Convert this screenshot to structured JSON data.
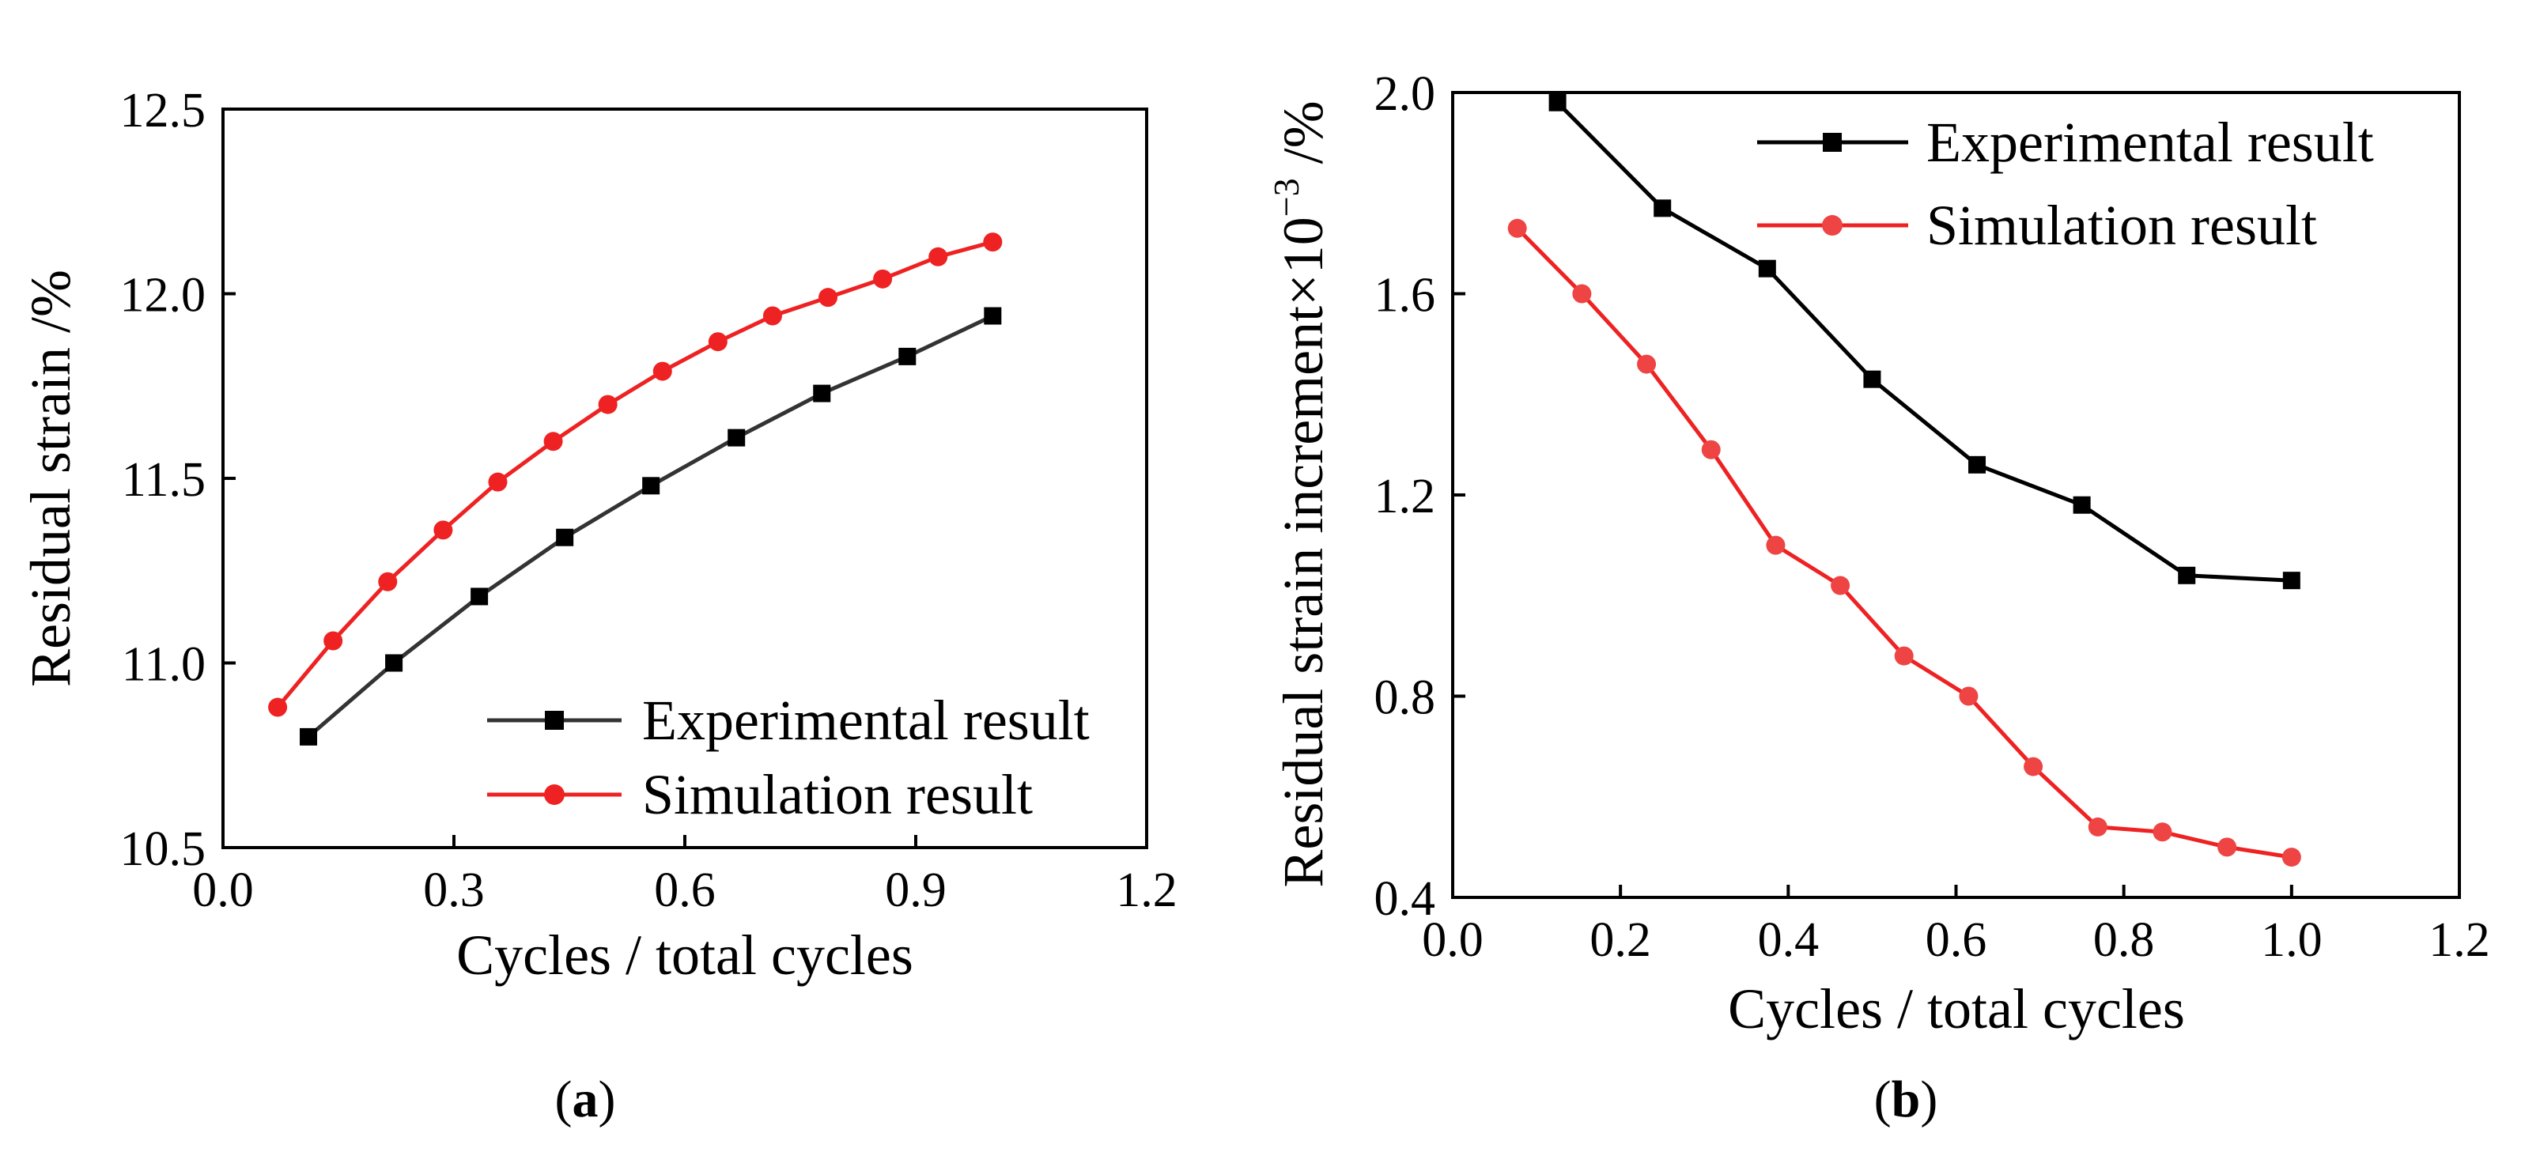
{
  "chart_data": [
    {
      "type": "line",
      "panel_label": "a",
      "xlabel": "Cycles / total cycles",
      "ylabel": "Residual strain  /%",
      "xlim": [
        0.0,
        1.2
      ],
      "ylim": [
        10.5,
        12.5
      ],
      "xticks": [
        "0.0",
        "0.3",
        "0.6",
        "0.9",
        "1.2"
      ],
      "yticks": [
        "10.5",
        "11.0",
        "11.5",
        "12.0",
        "12.5"
      ],
      "xtick_values": [
        0.0,
        0.3,
        0.6,
        0.9,
        1.2
      ],
      "ytick_values": [
        10.5,
        11.0,
        11.5,
        12.0,
        12.5
      ],
      "legend_position": "bottom-right",
      "series": [
        {
          "name": "Experimental result",
          "color": "#333333",
          "marker": "square",
          "x": [
            0.111,
            0.222,
            0.333,
            0.444,
            0.556,
            0.667,
            0.778,
            0.889,
            1.0
          ],
          "y": [
            10.8,
            11.0,
            11.18,
            11.34,
            11.48,
            11.61,
            11.73,
            11.83,
            11.94
          ]
        },
        {
          "name": "Simulation result",
          "color": "#ee2222",
          "marker": "circle",
          "x": [
            0.071,
            0.143,
            0.214,
            0.286,
            0.357,
            0.429,
            0.5,
            0.571,
            0.643,
            0.714,
            0.786,
            0.857,
            0.929,
            1.0
          ],
          "y": [
            10.88,
            11.06,
            11.22,
            11.36,
            11.49,
            11.6,
            11.7,
            11.79,
            11.87,
            11.94,
            11.99,
            12.04,
            12.1,
            12.14
          ]
        }
      ]
    },
    {
      "type": "line",
      "panel_label": "b",
      "xlabel": "Cycles / total cycles",
      "ylabel_main": "Residual strain increment×10",
      "ylabel_exp": "−3",
      "ylabel_unit": " /%",
      "xlim": [
        0.0,
        1.2
      ],
      "ylim": [
        0.4,
        2.0
      ],
      "xticks": [
        "0.0",
        "0.2",
        "0.4",
        "0.6",
        "0.8",
        "1.0",
        "1.2"
      ],
      "yticks": [
        "0.4",
        "0.8",
        "1.2",
        "1.6",
        "2.0"
      ],
      "xtick_values": [
        0.0,
        0.2,
        0.4,
        0.6,
        0.8,
        1.0,
        1.2
      ],
      "ytick_values": [
        0.4,
        0.8,
        1.2,
        1.6,
        2.0
      ],
      "legend_position": "top-right",
      "series": [
        {
          "name": "Experimental result",
          "color": "#000000",
          "marker": "square",
          "x": [
            0.125,
            0.25,
            0.375,
            0.5,
            0.625,
            0.75,
            0.875,
            1.0
          ],
          "y": [
            1.98,
            1.77,
            1.65,
            1.43,
            1.26,
            1.18,
            1.04,
            1.03
          ]
        },
        {
          "name": "Simulation result",
          "color": "#ee2222",
          "marker": "circle",
          "x": [
            0.077,
            0.154,
            0.231,
            0.308,
            0.385,
            0.462,
            0.538,
            0.615,
            0.692,
            0.769,
            0.846,
            0.923,
            1.0
          ],
          "y": [
            1.73,
            1.6,
            1.46,
            1.29,
            1.1,
            1.02,
            0.88,
            0.8,
            0.66,
            0.54,
            0.53,
            0.5,
            0.48
          ]
        }
      ]
    }
  ]
}
